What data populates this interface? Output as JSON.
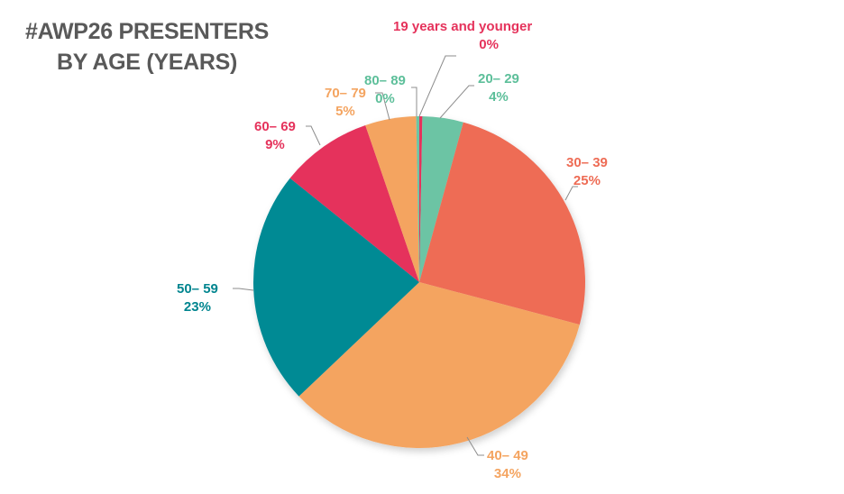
{
  "title": {
    "line1": "#AWP26 PRESENTERS",
    "line2": "BY AGE (YEARS)"
  },
  "chart_data": {
    "type": "pie",
    "title": "#AWP26 PRESENTERS BY AGE (YEARS)",
    "categories": [
      "19 years and younger",
      "20– 29",
      "30– 39",
      "40– 49",
      "50– 59",
      "60– 69",
      "70– 79",
      "80– 89"
    ],
    "values": [
      0.3,
      4,
      25,
      34,
      23,
      9,
      5,
      0.3
    ],
    "value_labels": [
      "0%",
      "4%",
      "25%",
      "34%",
      "23%",
      "9%",
      "5%",
      "0%"
    ],
    "colors": [
      "#E5325B",
      "#6CC4A4",
      "#EE6C55",
      "#F4A460",
      "#008A94",
      "#E5325B",
      "#F4A460",
      "#6CC4A4"
    ],
    "start_angle": "top",
    "direction": "clockwise",
    "legend": "none (data labels with leader lines)"
  },
  "labels": [
    {
      "name": "19 years and younger",
      "pct": "0%",
      "color": "#E5325B"
    },
    {
      "name": "20– 29",
      "pct": "4%",
      "color": "#5DBF9A"
    },
    {
      "name": "30– 39",
      "pct": "25%",
      "color": "#EE6C55"
    },
    {
      "name": "40– 49",
      "pct": "34%",
      "color": "#F4A460"
    },
    {
      "name": "50– 59",
      "pct": "23%",
      "color": "#00858F"
    },
    {
      "name": "60– 69",
      "pct": "9%",
      "color": "#E5325B"
    },
    {
      "name": "70– 79",
      "pct": "5%",
      "color": "#F4A460"
    },
    {
      "name": "80– 89",
      "pct": "0%",
      "color": "#5DBF9A"
    }
  ]
}
